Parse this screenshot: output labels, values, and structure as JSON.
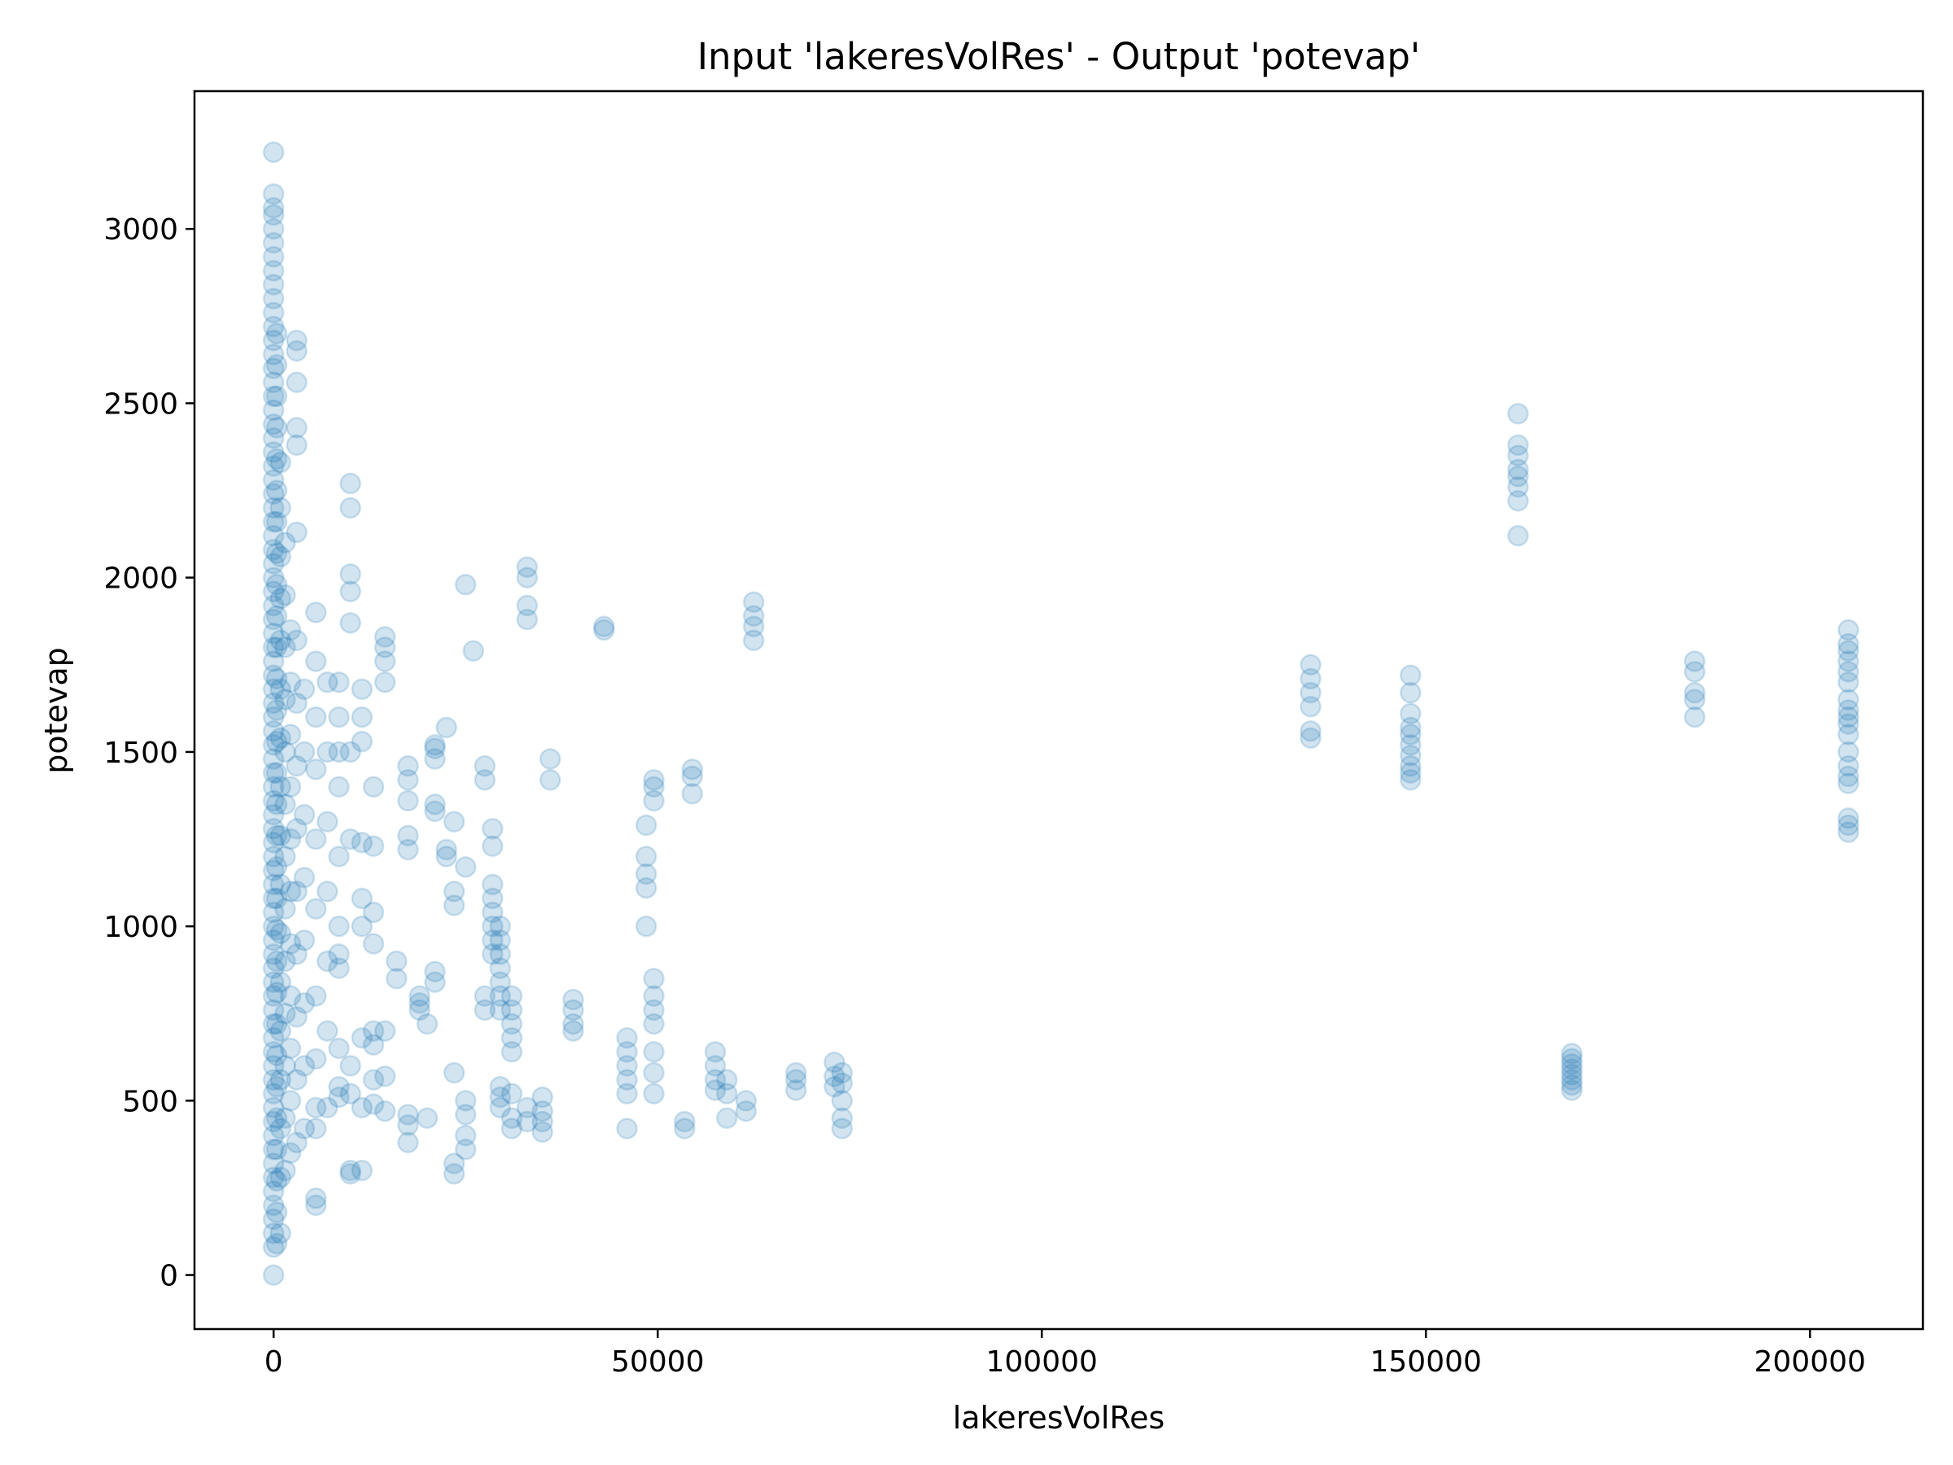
{
  "chart_data": {
    "type": "scatter",
    "title": "Input 'lakeresVolRes' - Output 'potevap'",
    "xlabel": "lakeresVolRes",
    "ylabel": "potevap",
    "xlim": [
      -10300,
      214700
    ],
    "ylim": [
      -155,
      3395
    ],
    "xticks": [
      0,
      50000,
      100000,
      150000,
      200000
    ],
    "yticks": [
      0,
      500,
      1000,
      1500,
      2000,
      2500,
      3000
    ],
    "xtick_labels": [
      "0",
      "50000",
      "100000",
      "150000",
      "200000"
    ],
    "ytick_labels": [
      "0",
      "500",
      "1000",
      "1500",
      "2000",
      "2500",
      "3000"
    ],
    "grid": false,
    "marker_color": "#1f77b4",
    "marker_alpha": 0.2,
    "clusters": [
      {
        "x": 0,
        "y": [
          0,
          80,
          120,
          160,
          200,
          240,
          280,
          320,
          360,
          400,
          440,
          480,
          520,
          560,
          600,
          640,
          680,
          720,
          760,
          800,
          840,
          880,
          920,
          960,
          1000,
          1040,
          1080,
          1120,
          1160,
          1200,
          1240,
          1280,
          1320,
          1360,
          1400,
          1440,
          1480,
          1520,
          1560,
          1600,
          1640,
          1680,
          1720,
          1760,
          1800,
          1840,
          1880,
          1920,
          1960,
          2000,
          2040,
          2080,
          2120,
          2160,
          2200,
          2240,
          2280,
          2320,
          2360,
          2400,
          2440,
          2480,
          2520,
          2560,
          2600,
          2640,
          2680,
          2720,
          2760,
          2800,
          2840,
          2880,
          2920,
          2960,
          3000,
          3040,
          3060,
          3100,
          3220
        ]
      },
      {
        "x": 400,
        "y": [
          90,
          180,
          270,
          360,
          450,
          540,
          630,
          720,
          810,
          900,
          990,
          1080,
          1170,
          1260,
          1350,
          1440,
          1530,
          1620,
          1710,
          1800,
          1890,
          1980,
          2070,
          2160,
          2250,
          2340,
          2430,
          2520,
          2610,
          2700
        ]
      },
      {
        "x": 900,
        "y": [
          120,
          280,
          420,
          560,
          700,
          840,
          980,
          1120,
          1260,
          1400,
          1540,
          1680,
          1820,
          1940,
          2060,
          2200,
          2330
        ]
      },
      {
        "x": 1500,
        "y": [
          300,
          450,
          600,
          750,
          900,
          1050,
          1200,
          1350,
          1500,
          1650,
          1800,
          1950,
          2100
        ]
      },
      {
        "x": 2200,
        "y": [
          350,
          500,
          650,
          800,
          950,
          1100,
          1250,
          1400,
          1550,
          1700,
          1850
        ]
      },
      {
        "x": 3000,
        "y": [
          380,
          560,
          740,
          920,
          1100,
          1280,
          1460,
          1640,
          1820,
          2130,
          2380,
          2430,
          2560,
          2650,
          2680
        ]
      },
      {
        "x": 4000,
        "y": [
          420,
          600,
          780,
          960,
          1140,
          1320,
          1500,
          1680
        ]
      },
      {
        "x": 5500,
        "y": [
          200,
          220,
          420,
          480,
          620,
          800,
          1050,
          1250,
          1450,
          1600,
          1760,
          1900
        ]
      },
      {
        "x": 7000,
        "y": [
          480,
          700,
          900,
          1100,
          1300,
          1500,
          1700
        ]
      },
      {
        "x": 8500,
        "y": [
          510,
          540,
          650,
          880,
          920,
          1000,
          1200,
          1400,
          1500,
          1600,
          1700
        ]
      },
      {
        "x": 10000,
        "y": [
          290,
          300,
          520,
          600,
          1250,
          1500,
          1870,
          1960,
          2010,
          2200,
          2270
        ]
      },
      {
        "x": 11500,
        "y": [
          300,
          480,
          680,
          1000,
          1080,
          1240,
          1530,
          1600,
          1680
        ]
      },
      {
        "x": 13000,
        "y": [
          490,
          560,
          660,
          700,
          950,
          1040,
          1230,
          1400
        ]
      },
      {
        "x": 14500,
        "y": [
          470,
          570,
          700,
          1700,
          1760,
          1800,
          1830
        ]
      },
      {
        "x": 16000,
        "y": [
          850,
          900
        ]
      },
      {
        "x": 17500,
        "y": [
          380,
          430,
          460,
          1220,
          1260,
          1360,
          1420,
          1460
        ]
      },
      {
        "x": 19000,
        "y": [
          760,
          780,
          800
        ]
      },
      {
        "x": 20000,
        "y": [
          450,
          720
        ]
      },
      {
        "x": 21000,
        "y": [
          840,
          870,
          1330,
          1350,
          1480,
          1510,
          1520
        ]
      },
      {
        "x": 22500,
        "y": [
          1200,
          1220,
          1570
        ]
      },
      {
        "x": 23500,
        "y": [
          290,
          320,
          580,
          1060,
          1100,
          1300
        ]
      },
      {
        "x": 25000,
        "y": [
          360,
          400,
          460,
          500,
          1170,
          1980
        ]
      },
      {
        "x": 26000,
        "y": [
          1790
        ]
      },
      {
        "x": 27500,
        "y": [
          760,
          800,
          1420,
          1460
        ]
      },
      {
        "x": 28500,
        "y": [
          920,
          960,
          1000,
          1040,
          1080,
          1120,
          1230,
          1280
        ]
      },
      {
        "x": 29500,
        "y": [
          480,
          510,
          540,
          760,
          800,
          840,
          880,
          920,
          960,
          1000
        ]
      },
      {
        "x": 31000,
        "y": [
          420,
          450,
          520,
          640,
          680,
          720,
          760,
          800
        ]
      },
      {
        "x": 33000,
        "y": [
          440,
          480,
          1880,
          1920,
          2000,
          2030
        ]
      },
      {
        "x": 35000,
        "y": [
          410,
          440,
          470,
          510
        ]
      },
      {
        "x": 36000,
        "y": [
          1420,
          1480
        ]
      },
      {
        "x": 39000,
        "y": [
          700,
          720,
          760,
          790
        ]
      },
      {
        "x": 43000,
        "y": [
          1850,
          1860
        ]
      },
      {
        "x": 46000,
        "y": [
          420,
          520,
          560,
          600,
          640,
          680
        ]
      },
      {
        "x": 48500,
        "y": [
          1000,
          1110,
          1150,
          1200,
          1290
        ]
      },
      {
        "x": 49500,
        "y": [
          520,
          580,
          640,
          720,
          760,
          800,
          850,
          1360,
          1400,
          1420
        ]
      },
      {
        "x": 53500,
        "y": [
          420,
          440
        ]
      },
      {
        "x": 54500,
        "y": [
          1380,
          1430,
          1450
        ]
      },
      {
        "x": 57500,
        "y": [
          530,
          560,
          600,
          640
        ]
      },
      {
        "x": 59000,
        "y": [
          450,
          520,
          560
        ]
      },
      {
        "x": 61500,
        "y": [
          470,
          500
        ]
      },
      {
        "x": 62500,
        "y": [
          1820,
          1860,
          1890,
          1930
        ]
      },
      {
        "x": 68000,
        "y": [
          530,
          560,
          580
        ]
      },
      {
        "x": 73000,
        "y": [
          540,
          570,
          610
        ]
      },
      {
        "x": 74000,
        "y": [
          420,
          450,
          500,
          550,
          580
        ]
      },
      {
        "x": 135000,
        "y": [
          1540,
          1560,
          1630,
          1670,
          1710,
          1750
        ]
      },
      {
        "x": 148000,
        "y": [
          1420,
          1440,
          1460,
          1490,
          1520,
          1550,
          1570,
          1610,
          1670,
          1720
        ]
      },
      {
        "x": 162000,
        "y": [
          2120,
          2220,
          2260,
          2290,
          2310,
          2350,
          2380,
          2470
        ]
      },
      {
        "x": 169000,
        "y": [
          530,
          545,
          560,
          575,
          590,
          605,
          620,
          635
        ]
      },
      {
        "x": 185000,
        "y": [
          1600,
          1650,
          1670,
          1730,
          1760
        ]
      },
      {
        "x": 205000,
        "y": [
          1270,
          1290,
          1310,
          1410,
          1430,
          1460,
          1500,
          1550,
          1580,
          1600,
          1620,
          1650,
          1700,
          1730,
          1760,
          1790,
          1810,
          1850
        ]
      }
    ]
  }
}
